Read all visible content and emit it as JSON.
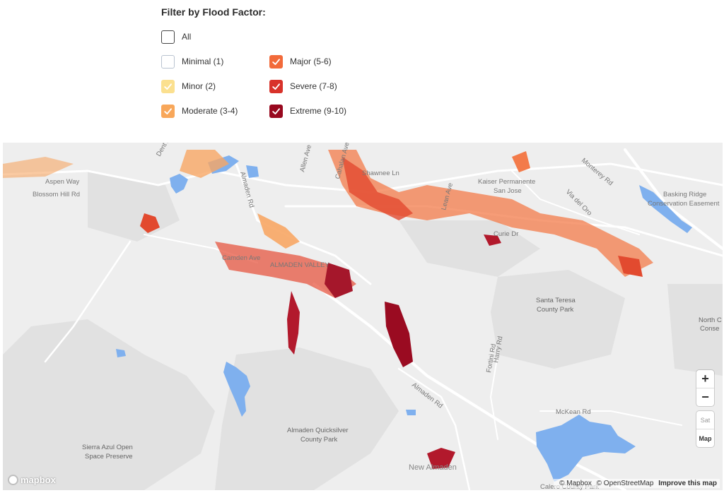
{
  "filter": {
    "title": "Filter by Flood Factor:",
    "options": [
      {
        "key": "all",
        "label": "All",
        "checked": false,
        "color": "#ffffff",
        "border": "#444444"
      },
      {
        "key": "minimal",
        "label": "Minimal (1)",
        "checked": false,
        "color": "#ffffff",
        "border": "#b9c3d0"
      },
      {
        "key": "minor",
        "label": "Minor (2)",
        "checked": true,
        "color": "#fbe08f",
        "border": "#fbe08f"
      },
      {
        "key": "moderate",
        "label": "Moderate (3-4)",
        "checked": true,
        "color": "#f8a75a",
        "border": "#f8a75a"
      },
      {
        "key": "major",
        "label": "Major (5-6)",
        "checked": true,
        "color": "#f26a3a",
        "border": "#f26a3a"
      },
      {
        "key": "severe",
        "label": "Severe (7-8)",
        "checked": true,
        "color": "#d8322a",
        "border": "#d8322a"
      },
      {
        "key": "extreme",
        "label": "Extreme (9-10)",
        "checked": true,
        "color": "#98081e",
        "border": "#98081e"
      }
    ]
  },
  "map": {
    "labels": {
      "blossom_hill": "Blossom Hill Rd",
      "aspen_way": "Aspen Way",
      "dent_ave": "Dent Ave",
      "almaden_top": "Almaden Rd",
      "allen_ave": "Allen Ave",
      "cahalan_ave": "Cahalan Ave",
      "shawnee_ln": "Shawnee Ln",
      "kaiser": "Kaiser Permanente",
      "san_jose": "San Jose",
      "via_del_oro": "Via del Oro",
      "monterey_rd": "Monterey Rd",
      "basking_ridge_1": "Basking Ridge",
      "basking_ridge_2": "Conservation Easement",
      "curie_dr": "Curie Dr",
      "camden_ave": "Camden Ave",
      "almaden_valley": "ALMADEN VALLEY",
      "lean_ave": "Lean Ave",
      "santa_teresa_1": "Santa Teresa",
      "santa_teresa_2": "County Park",
      "north_coyote_1": "North C",
      "north_coyote_2": "Conse",
      "fortini_rd": "Fortini Rd",
      "harry_rd": "Harry Rd",
      "almaden_rd": "Almaden Rd",
      "mckean_rd": "McKean Rd",
      "quicksilver_1": "Almaden Quicksilver",
      "quicksilver_2": "County Park",
      "sierra_azul_1": "Sierra Azul Open",
      "sierra_azul_2": "Space Preserve",
      "new_almaden": "New Almaden",
      "calero": "Calero County Park"
    },
    "controls": {
      "zoom_in": "+",
      "zoom_out": "−",
      "sat": "Sat",
      "map": "Map"
    },
    "attribution": {
      "mapbox": "© Mapbox",
      "osm": "© OpenStreetMap",
      "improve": "Improve this map"
    },
    "logo": "mapbox",
    "colors": {
      "land": "#eeeeee",
      "park": "#e2e2e2",
      "water": "#7fb0ee",
      "road": "#ffffff"
    }
  }
}
